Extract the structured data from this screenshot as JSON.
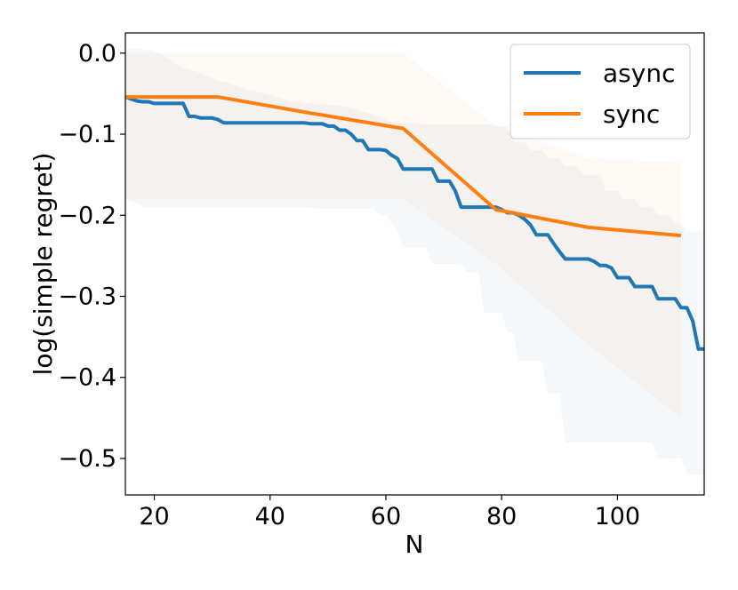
{
  "chart_data": {
    "type": "line",
    "title": "",
    "xlabel": "N",
    "ylabel": "log(simple regret)",
    "xlim": [
      15,
      115
    ],
    "ylim": [
      -0.545,
      0.025
    ],
    "x_ticks": [
      20,
      40,
      60,
      80,
      100
    ],
    "x_tick_labels": [
      "20",
      "40",
      "60",
      "80",
      "100"
    ],
    "y_ticks": [
      0.0,
      -0.1,
      -0.2,
      -0.3,
      -0.4,
      -0.5
    ],
    "y_tick_labels": [
      "0.0",
      "−0.1",
      "−0.2",
      "−0.3",
      "−0.4",
      "−0.5"
    ],
    "grid": false,
    "legend_position": "top-right",
    "series": [
      {
        "name": "async",
        "color": "#1f77b4",
        "x": [
          15,
          17,
          18,
          19,
          20,
          21,
          22,
          23,
          24,
          25,
          26,
          27,
          28,
          29,
          30,
          31,
          32,
          33,
          34,
          35,
          36,
          37,
          38,
          39,
          40,
          41,
          42,
          43,
          44,
          45,
          46,
          47,
          48,
          49,
          50,
          51,
          52,
          53,
          54,
          55,
          56,
          57,
          58,
          59,
          60,
          61,
          62,
          63,
          64,
          65,
          66,
          67,
          68,
          69,
          70,
          71,
          72,
          73,
          74,
          75,
          76,
          77,
          78,
          79,
          80,
          81,
          82,
          83,
          84,
          85,
          86,
          87,
          88,
          89,
          90,
          91,
          92,
          93,
          94,
          95,
          96,
          97,
          98,
          99,
          100,
          101,
          102,
          103,
          104,
          105,
          106,
          107,
          108,
          109,
          110,
          111,
          112,
          113,
          114,
          115
        ],
        "y": [
          -0.054,
          -0.059,
          -0.06,
          -0.06,
          -0.062,
          -0.062,
          -0.062,
          -0.062,
          -0.062,
          -0.062,
          -0.078,
          -0.078,
          -0.08,
          -0.08,
          -0.08,
          -0.082,
          -0.086,
          -0.086,
          -0.086,
          -0.086,
          -0.086,
          -0.086,
          -0.086,
          -0.086,
          -0.086,
          -0.086,
          -0.086,
          -0.086,
          -0.086,
          -0.086,
          -0.086,
          -0.087,
          -0.087,
          -0.087,
          -0.09,
          -0.09,
          -0.095,
          -0.095,
          -0.1,
          -0.108,
          -0.108,
          -0.119,
          -0.119,
          -0.119,
          -0.12,
          -0.126,
          -0.13,
          -0.143,
          -0.143,
          -0.143,
          -0.143,
          -0.143,
          -0.143,
          -0.158,
          -0.158,
          -0.158,
          -0.17,
          -0.19,
          -0.19,
          -0.19,
          -0.19,
          -0.19,
          -0.19,
          -0.19,
          -0.193,
          -0.197,
          -0.197,
          -0.2,
          -0.205,
          -0.212,
          -0.224,
          -0.224,
          -0.224,
          -0.235,
          -0.245,
          -0.254,
          -0.254,
          -0.254,
          -0.254,
          -0.254,
          -0.257,
          -0.262,
          -0.262,
          -0.265,
          -0.277,
          -0.277,
          -0.277,
          -0.288,
          -0.288,
          -0.288,
          -0.288,
          -0.303,
          -0.303,
          -0.303,
          -0.303,
          -0.314,
          -0.314,
          -0.33,
          -0.365,
          -0.365
        ],
        "band_lower": [
          -0.18,
          -0.185,
          -0.19,
          -0.19,
          -0.19,
          -0.19,
          -0.19,
          -0.19,
          -0.19,
          -0.19,
          -0.19,
          -0.19,
          -0.19,
          -0.19,
          -0.19,
          -0.19,
          -0.19,
          -0.19,
          -0.19,
          -0.19,
          -0.19,
          -0.19,
          -0.19,
          -0.19,
          -0.19,
          -0.19,
          -0.19,
          -0.19,
          -0.19,
          -0.19,
          -0.19,
          -0.191,
          -0.192,
          -0.192,
          -0.192,
          -0.192,
          -0.192,
          -0.192,
          -0.192,
          -0.192,
          -0.192,
          -0.192,
          -0.192,
          -0.2,
          -0.2,
          -0.21,
          -0.22,
          -0.24,
          -0.24,
          -0.24,
          -0.24,
          -0.24,
          -0.26,
          -0.26,
          -0.26,
          -0.26,
          -0.26,
          -0.26,
          -0.27,
          -0.27,
          -0.27,
          -0.32,
          -0.32,
          -0.32,
          -0.32,
          -0.345,
          -0.345,
          -0.38,
          -0.38,
          -0.38,
          -0.38,
          -0.38,
          -0.42,
          -0.42,
          -0.42,
          -0.48,
          -0.48,
          -0.48,
          -0.48,
          -0.48,
          -0.48,
          -0.48,
          -0.48,
          -0.48,
          -0.48,
          -0.48,
          -0.48,
          -0.48,
          -0.48,
          -0.48,
          -0.48,
          -0.5,
          -0.5,
          -0.5,
          -0.5,
          -0.5,
          -0.52,
          -0.52,
          -0.52,
          -0.52
        ],
        "band_upper": [
          0.005,
          0.005,
          0.005,
          0.004,
          0.002,
          0.0,
          -0.005,
          -0.01,
          -0.015,
          -0.018,
          -0.02,
          -0.022,
          -0.025,
          -0.028,
          -0.03,
          -0.035,
          -0.035,
          -0.038,
          -0.04,
          -0.042,
          -0.045,
          -0.046,
          -0.048,
          -0.05,
          -0.052,
          -0.054,
          -0.056,
          -0.058,
          -0.06,
          -0.06,
          -0.062,
          -0.062,
          -0.063,
          -0.063,
          -0.064,
          -0.064,
          -0.065,
          -0.066,
          -0.068,
          -0.07,
          -0.072,
          -0.074,
          -0.076,
          -0.08,
          -0.082,
          -0.085,
          -0.085,
          -0.087,
          -0.087,
          -0.087,
          -0.087,
          -0.088,
          -0.088,
          -0.088,
          -0.088,
          -0.088,
          -0.088,
          -0.088,
          -0.088,
          -0.088,
          -0.088,
          -0.088,
          -0.088,
          -0.09,
          -0.09,
          -0.09,
          -0.11,
          -0.11,
          -0.11,
          -0.12,
          -0.12,
          -0.12,
          -0.13,
          -0.13,
          -0.13,
          -0.14,
          -0.14,
          -0.14,
          -0.15,
          -0.15,
          -0.15,
          -0.15,
          -0.17,
          -0.17,
          -0.17,
          -0.18,
          -0.18,
          -0.18,
          -0.19,
          -0.19,
          -0.19,
          -0.2,
          -0.2,
          -0.2,
          -0.21,
          -0.21,
          -0.22,
          -0.22,
          -0.22,
          -0.22
        ]
      },
      {
        "name": "sync",
        "color": "#ff7f0e",
        "x": [
          15,
          31,
          47,
          63,
          79,
          95,
          111
        ],
        "y": [
          -0.054,
          -0.054,
          -0.074,
          -0.093,
          -0.193,
          -0.215,
          -0.225
        ],
        "band_lower": [
          -0.18,
          -0.18,
          -0.18,
          -0.18,
          -0.26,
          -0.36,
          -0.45
        ],
        "band_upper": [
          0.0,
          0.0,
          0.0,
          0.0,
          -0.09,
          -0.13,
          -0.135
        ]
      }
    ]
  }
}
